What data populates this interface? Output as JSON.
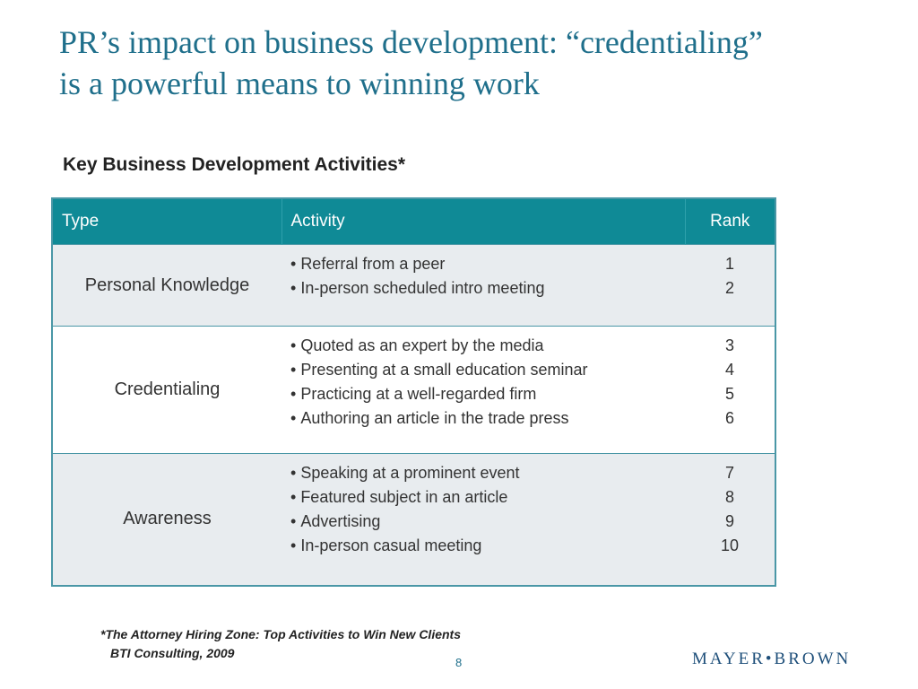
{
  "slide": {
    "title_line1": "PR’s impact on business development: “credentialing”",
    "title_line2": "is a powerful means to winning work",
    "subtitle": "Key Business Development Activities*",
    "page_number": "8",
    "logo_text": "MAYER•BROWN"
  },
  "table": {
    "headers": {
      "type": "Type",
      "activity": "Activity",
      "rank": "Rank"
    },
    "rows": [
      {
        "type": "Personal Knowledge",
        "activities": [
          "Referral from a peer",
          "In-person scheduled intro meeting"
        ],
        "ranks": [
          "1",
          "2"
        ]
      },
      {
        "type": "Credentialing",
        "activities": [
          "Quoted as an expert by the media",
          "Presenting at a small education seminar",
          "Practicing at a well-regarded firm",
          "Authoring an article in the trade press"
        ],
        "ranks": [
          "3",
          "4",
          "5",
          "6"
        ]
      },
      {
        "type": "Awareness",
        "activities": [
          "Speaking at a prominent event",
          "Featured subject in an article",
          "Advertising",
          "In-person casual meeting"
        ],
        "ranks": [
          "7",
          "8",
          "9",
          "10"
        ]
      }
    ]
  },
  "footnote": {
    "citation": "*The Attorney Hiring Zone: Top Activities to Win New Clients",
    "source": "BTI Consulting, 2009"
  },
  "colors": {
    "title": "#1f6f8b",
    "header_bg": "#0f8a96",
    "shaded_row": "#e8ecef",
    "logo": "#1e4f7a"
  }
}
